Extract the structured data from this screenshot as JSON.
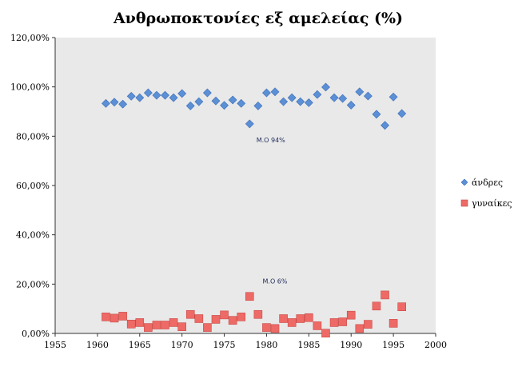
{
  "chart_data": {
    "type": "scatter",
    "title": "Ανθρωποκτονίες εξ αμελείας (%)",
    "xlabel": "",
    "ylabel": "",
    "xlim": [
      1955,
      2000
    ],
    "xticks": [
      1955,
      1960,
      1965,
      1970,
      1975,
      1980,
      1985,
      1990,
      1995,
      2000
    ],
    "ylim": [
      0,
      120
    ],
    "yticks": [
      0,
      20,
      40,
      60,
      80,
      100,
      120
    ],
    "ytick_labels": [
      "0,00%",
      "20,00%",
      "40,00%",
      "60,00%",
      "80,00%",
      "100,00%",
      "120,00%"
    ],
    "plot_background": "#e9e9e9",
    "grid": false,
    "legend_position": "right",
    "series": [
      {
        "name": "άνδρες",
        "color": "#5b8fd6",
        "marker": "diamond",
        "points": [
          [
            1961,
            93.3
          ],
          [
            1962,
            93.8
          ],
          [
            1963,
            93.0
          ],
          [
            1964,
            96.2
          ],
          [
            1965,
            95.6
          ],
          [
            1966,
            97.6
          ],
          [
            1967,
            96.6
          ],
          [
            1968,
            96.6
          ],
          [
            1969,
            95.6
          ],
          [
            1970,
            97.3
          ],
          [
            1971,
            92.3
          ],
          [
            1972,
            94.0
          ],
          [
            1973,
            97.6
          ],
          [
            1974,
            94.3
          ],
          [
            1975,
            92.5
          ],
          [
            1976,
            94.7
          ],
          [
            1977,
            93.3
          ],
          [
            1978,
            85.0
          ],
          [
            1979,
            92.3
          ],
          [
            1980,
            97.6
          ],
          [
            1981,
            98.0
          ],
          [
            1982,
            94.0
          ],
          [
            1983,
            95.6
          ],
          [
            1984,
            94.0
          ],
          [
            1985,
            93.6
          ],
          [
            1986,
            96.9
          ],
          [
            1987,
            99.9
          ],
          [
            1988,
            95.6
          ],
          [
            1989,
            95.3
          ],
          [
            1990,
            92.6
          ],
          [
            1991,
            98.0
          ],
          [
            1992,
            96.3
          ],
          [
            1993,
            88.9
          ],
          [
            1994,
            84.4
          ],
          [
            1995,
            95.9
          ],
          [
            1996,
            89.2
          ]
        ]
      },
      {
        "name": "γυναίκες",
        "color": "#ee6a66",
        "marker": "square",
        "points": [
          [
            1961,
            6.7
          ],
          [
            1962,
            6.2
          ],
          [
            1963,
            7.0
          ],
          [
            1964,
            3.8
          ],
          [
            1965,
            4.4
          ],
          [
            1966,
            2.4
          ],
          [
            1967,
            3.4
          ],
          [
            1968,
            3.4
          ],
          [
            1969,
            4.4
          ],
          [
            1970,
            2.7
          ],
          [
            1971,
            7.7
          ],
          [
            1972,
            6.0
          ],
          [
            1973,
            2.4
          ],
          [
            1974,
            5.7
          ],
          [
            1975,
            7.5
          ],
          [
            1976,
            5.3
          ],
          [
            1977,
            6.7
          ],
          [
            1978,
            15.0
          ],
          [
            1979,
            7.7
          ],
          [
            1980,
            2.4
          ],
          [
            1981,
            2.0
          ],
          [
            1982,
            6.0
          ],
          [
            1983,
            4.4
          ],
          [
            1984,
            6.0
          ],
          [
            1985,
            6.4
          ],
          [
            1986,
            3.1
          ],
          [
            1987,
            0.1
          ],
          [
            1988,
            4.4
          ],
          [
            1989,
            4.7
          ],
          [
            1990,
            7.4
          ],
          [
            1991,
            2.0
          ],
          [
            1992,
            3.7
          ],
          [
            1993,
            11.1
          ],
          [
            1994,
            15.6
          ],
          [
            1995,
            4.1
          ],
          [
            1996,
            10.8
          ]
        ]
      }
    ],
    "annotations": [
      {
        "text": "Μ.Ο 94%",
        "x": 1980.5,
        "y": 77.5
      },
      {
        "text": "Μ.Ο 6%",
        "x": 1981.0,
        "y": 20.2
      }
    ]
  }
}
